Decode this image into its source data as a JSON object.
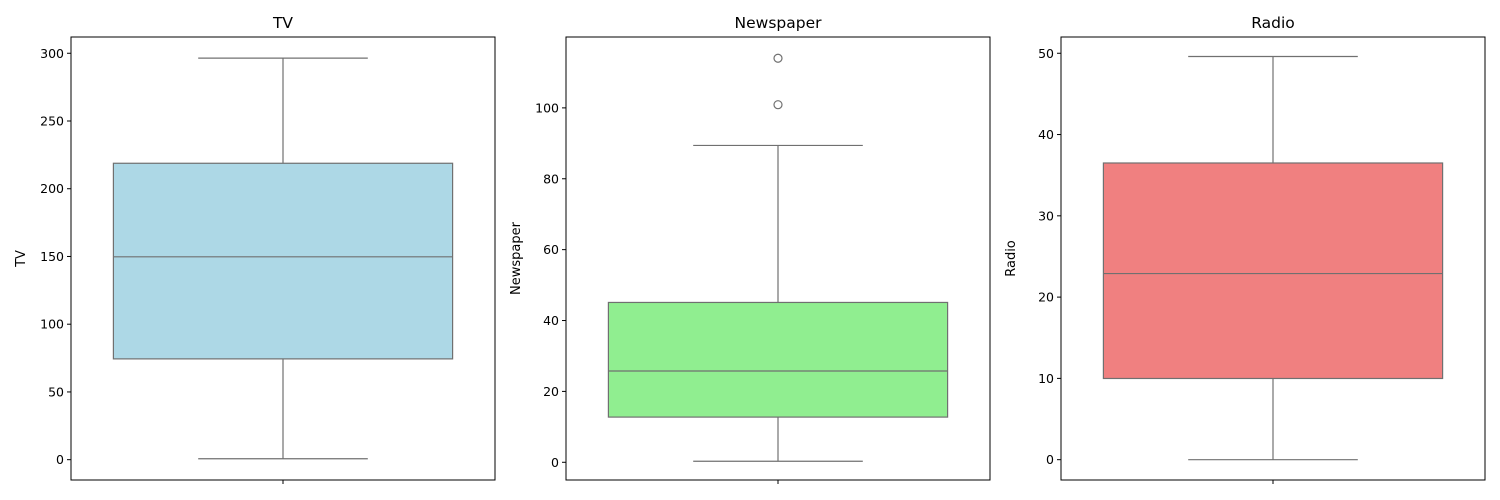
{
  "chart_data": [
    {
      "type": "box",
      "title": "TV",
      "xlabel": "",
      "ylabel": "TV",
      "ylim": [
        -15,
        312
      ],
      "yticks": [
        0,
        50,
        100,
        150,
        200,
        250,
        300
      ],
      "color": "#add8e6",
      "grid": false,
      "box": {
        "whisker_low": 0.7,
        "q1": 74.4,
        "median": 149.75,
        "q3": 218.8,
        "whisker_high": 296.4,
        "outliers": []
      }
    },
    {
      "type": "box",
      "title": "Newspaper",
      "xlabel": "",
      "ylabel": "Newspaper",
      "ylim": [
        -5,
        120
      ],
      "yticks": [
        0,
        20,
        40,
        60,
        80,
        100
      ],
      "color": "#90ee90",
      "grid": false,
      "box": {
        "whisker_low": 0.3,
        "q1": 12.75,
        "median": 25.75,
        "q3": 45.1,
        "whisker_high": 89.4,
        "outliers": [
          100.9,
          114.0
        ]
      }
    },
    {
      "type": "box",
      "title": "Radio",
      "xlabel": "",
      "ylabel": "Radio",
      "ylim": [
        -2.5,
        52
      ],
      "yticks": [
        0,
        10,
        20,
        30,
        40,
        50
      ],
      "color": "#f08080",
      "grid": false,
      "box": {
        "whisker_low": 0.0,
        "q1": 9.99,
        "median": 22.9,
        "q3": 36.5,
        "whisker_high": 49.6,
        "outliers": []
      }
    }
  ]
}
